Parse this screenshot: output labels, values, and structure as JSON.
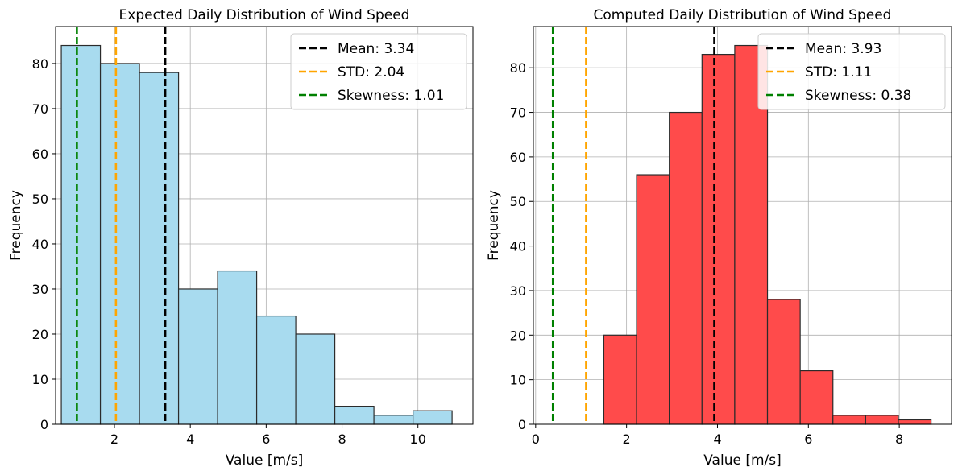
{
  "chart_data": [
    {
      "type": "bar",
      "title": "Expected Daily Distribution of Wind Speed",
      "xlabel": "Value [m/s]",
      "ylabel": "Frequency",
      "bar_color": "#a8dbef",
      "edge_color": "#2b2b2b",
      "xlim": [
        0.45,
        11.45
      ],
      "ylim": [
        0,
        88.2
      ],
      "xticks": [
        2,
        4,
        6,
        8,
        10
      ],
      "yticks": [
        0,
        10,
        20,
        30,
        40,
        50,
        60,
        70,
        80
      ],
      "grid": true,
      "bin_edges": [
        0.6,
        1.63,
        2.66,
        3.69,
        4.72,
        5.75,
        6.78,
        7.81,
        8.84,
        9.87,
        10.9
      ],
      "values": [
        84,
        80,
        78,
        30,
        34,
        24,
        20,
        4,
        2,
        3
      ],
      "vlines": [
        {
          "label": "Mean: 3.34",
          "x": 3.34,
          "color": "#000000"
        },
        {
          "label": "STD: 2.04",
          "x": 2.04,
          "color": "#ffa500"
        },
        {
          "label": "Skewness: 1.01",
          "x": 1.01,
          "color": "#008000"
        }
      ],
      "legend_position": "top-right"
    },
    {
      "type": "bar",
      "title": "Computed Daily Distribution of Wind Speed",
      "xlabel": "Value [m/s]",
      "ylabel": "Frequency",
      "bar_color": "#ff4b4b",
      "edge_color": "#2b2b2b",
      "xlim": [
        -0.05,
        9.15
      ],
      "ylim": [
        0,
        89.25
      ],
      "xticks": [
        0,
        2,
        4,
        6,
        8
      ],
      "yticks": [
        0,
        10,
        20,
        30,
        40,
        50,
        60,
        70,
        80
      ],
      "grid": true,
      "bin_edges": [
        1.5,
        2.22,
        2.94,
        3.66,
        4.38,
        5.1,
        5.82,
        6.54,
        7.26,
        7.98,
        8.7
      ],
      "values": [
        20,
        56,
        70,
        83,
        85,
        28,
        12,
        2,
        2,
        1
      ],
      "vlines": [
        {
          "label": "Mean: 3.93",
          "x": 3.93,
          "color": "#000000"
        },
        {
          "label": "STD: 1.11",
          "x": 1.11,
          "color": "#ffa500"
        },
        {
          "label": "Skewness: 0.38",
          "x": 0.38,
          "color": "#008000"
        }
      ],
      "legend_position": "top-right"
    }
  ]
}
